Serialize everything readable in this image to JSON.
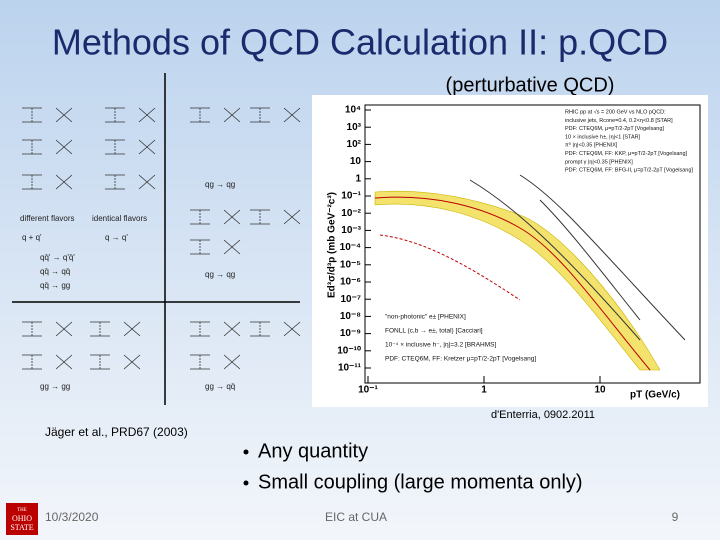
{
  "slide": {
    "title": "Methods of QCD Calculation II: p.QCD",
    "subtitle": "(perturbative QCD)",
    "citation_left": "Jäger et al., PRD67 (2003)",
    "citation_right": "d'Enterria, 0902.2011",
    "bullets": [
      "Any quantity",
      "Small coupling (large momenta only)"
    ],
    "footer": {
      "date": "10/3/2020",
      "event": "EIC at CUA",
      "page": "9"
    },
    "logo": [
      "THE",
      "OHIO",
      "STATE"
    ]
  },
  "figure_left": {
    "flavor_labels": [
      "different flavors",
      "identical flavors"
    ],
    "initial_labels": [
      "q + q'",
      "q → q'"
    ],
    "left_processes": [
      "qq̄' → q'q̄'",
      "qq̄ → qq̄",
      "qq̄ → gg",
      "gg → gg"
    ],
    "right_processes": [
      "qg → qg",
      "qg → qg",
      "gg → qq̄"
    ]
  },
  "figure_right": {
    "y_label": "Ed³σ/d³p (mb GeV⁻²c³)",
    "x_label": "pT (GeV/c)",
    "y_ticks": [
      "10⁴",
      "10³",
      "10²",
      "10",
      "1",
      "10⁻¹",
      "10⁻²",
      "10⁻³",
      "10⁻⁴",
      "10⁻⁵",
      "10⁻⁶",
      "10⁻⁷",
      "10⁻⁸",
      "10⁻⁹",
      "10⁻¹⁰",
      "10⁻¹¹"
    ],
    "x_ticks": [
      "10⁻¹",
      "1",
      "10"
    ],
    "legend_top": [
      "RHIC pp at √s = 200 GeV vs NLO pQCD:",
      "inclusive jets, Rcone=0.4, 0.2<η<0.8 [STAR]",
      "PDF: CTEQ6M, μ=pT/2-2pT [Vogelsang]",
      "10 × inclusive h±, |η|<1 [STAR]",
      "π⁰ |η|<0.35 [PHENIX]",
      "PDF: CTEQ6M, FF: KKP, μ=pT/2-2pT [Vogelsang]",
      "prompt γ |η|<0.35 [PHENIX]",
      "PDF: CTEQ6M, FF: BFG-II, μ=pT/2-2pT [Vogelsang]"
    ],
    "legend_bottom": [
      "\"non-photonic\" e± [PHENIX]",
      "FONLL (c,b → e±, total) [Cacciari]",
      "10⁻⁴ × inclusive h⁻, |η|=3.2 [BRAHMS]",
      "PDF: CTEQ6M, FF: Kretzer μ=pT/2-2pT [Vogelsang]"
    ]
  }
}
